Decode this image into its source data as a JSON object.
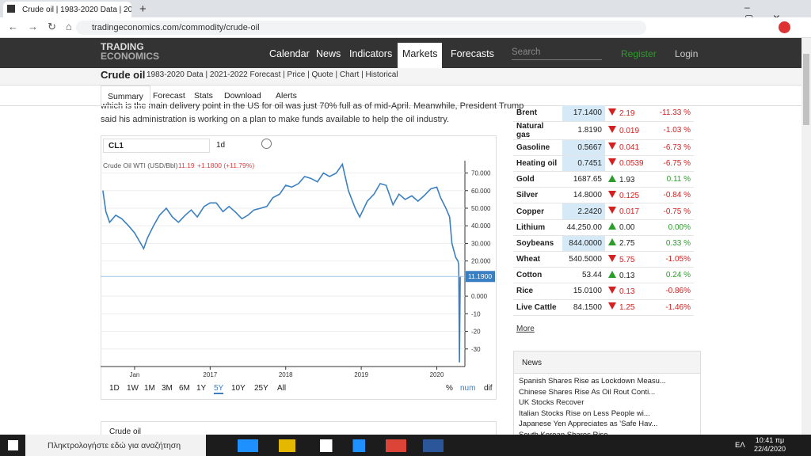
{
  "browser": {
    "tab_title": "Crude oil | 1983-2020 Data | 202",
    "url": "tradingeconomics.com/commodity/crude-oil"
  },
  "nav": {
    "logo_top": "TRADING",
    "logo_bottom": "ECONOMICS",
    "items": [
      "Calendar",
      "News",
      "Indicators",
      "Markets",
      "Forecasts"
    ],
    "search": "Search",
    "register": "Register",
    "login": "Login"
  },
  "subheader": {
    "title": "Crude oil",
    "links": "1983-2020 Data | 2021-2022 Forecast | Price | Quote | Chart | Historical"
  },
  "tabs": [
    "Summary",
    "Forecast",
    "Stats",
    "Download",
    "Alerts"
  ],
  "article": [
    "which is the main delivery point in the US for oil was just 70% full as of mid-April. Meanwhile, President Trump",
    "said his administration is working on a plan to make funds available to help the oil industry."
  ],
  "widget": {
    "symbol": "CL1",
    "interval": "1d",
    "last": "11.19",
    "change": "+1.1800 (+11.79%)",
    "ranges": [
      "1D",
      "1W",
      "1M",
      "3M",
      "6M",
      "1Y",
      "5Y",
      "10Y",
      "25Y",
      "All"
    ],
    "active_range": 6,
    "modes": [
      "%",
      "num",
      "dif"
    ],
    "active_mode": 1
  },
  "chart_data": {
    "type": "line",
    "x": [
      2015.58,
      2015.62,
      2015.67,
      2015.75,
      2015.83,
      2015.92,
      2016.0,
      2016.08,
      2016.12,
      2016.17,
      2016.25,
      2016.33,
      2016.42,
      2016.5,
      2016.58,
      2016.67,
      2016.75,
      2016.83,
      2016.92,
      2017.0,
      2017.08,
      2017.17,
      2017.25,
      2017.33,
      2017.42,
      2017.5,
      2017.58,
      2017.67,
      2017.75,
      2017.83,
      2017.92,
      2018.0,
      2018.08,
      2018.17,
      2018.25,
      2018.33,
      2018.42,
      2018.5,
      2018.58,
      2018.67,
      2018.75,
      2018.83,
      2018.92,
      2018.98,
      2019.08,
      2019.17,
      2019.25,
      2019.33,
      2019.42,
      2019.5,
      2019.58,
      2019.67,
      2019.75,
      2019.83,
      2019.92,
      2020.0,
      2020.05,
      2020.12,
      2020.17,
      2020.2,
      2020.25,
      2020.28,
      2020.29,
      2020.3,
      2020.31
    ],
    "series": [
      {
        "name": "Crude Oil WTI (USD/Bbl)",
        "color": "#3a7fc1",
        "values": [
          60,
          48,
          42,
          46,
          44,
          40,
          36,
          30,
          27,
          33,
          40,
          46,
          50,
          45,
          42,
          46,
          49,
          45,
          51,
          53,
          53,
          48,
          51,
          48,
          44,
          46,
          49,
          50,
          51,
          56,
          58,
          63,
          62,
          64,
          68,
          67,
          65,
          70,
          68,
          70,
          75,
          60,
          50,
          45,
          54,
          58,
          64,
          63,
          52,
          58,
          55,
          57,
          54,
          57,
          61,
          62,
          56,
          50,
          45,
          30,
          22,
          20,
          18,
          -37.63,
          11.19
        ]
      }
    ],
    "last_value": {
      "value": 11.19,
      "label": "11.1900"
    },
    "xlim": [
      2015.55,
      2020.33
    ],
    "xticks": [
      {
        "value": 2016,
        "label": "Jan"
      },
      2017,
      2018,
      2019,
      2020
    ],
    "ylim": [
      -40,
      77
    ],
    "yticks": [
      {
        "value": 70,
        "label": "70.000"
      },
      {
        "value": 60,
        "label": "60.000"
      },
      {
        "value": 50,
        "label": "50.000"
      },
      {
        "value": 40,
        "label": "40.000"
      },
      {
        "value": 30,
        "label": "30.000"
      },
      {
        "value": 20,
        "label": "20.000"
      },
      {
        "value": 0,
        "label": "0.000"
      },
      -10,
      -20,
      -30
    ],
    "grid": true
  },
  "table": {
    "rows": [
      {
        "name": "Brent",
        "price": "17.1400",
        "change": "2.19",
        "pct": "-11.33 %",
        "direction": "down",
        "highlight": true
      },
      {
        "name": "Natural gas",
        "price": "1.8190",
        "change": "0.019",
        "pct": "-1.03 %",
        "direction": "down",
        "highlight": false
      },
      {
        "name": "Gasoline",
        "price": "0.5667",
        "change": "0.041",
        "pct": "-6.73 %",
        "direction": "down",
        "highlight": true
      },
      {
        "name": "Heating oil",
        "price": "0.7451",
        "change": "0.0539",
        "pct": "-6.75 %",
        "direction": "down",
        "highlight": true
      },
      {
        "name": "Gold",
        "price": "1687.65",
        "change": "1.93",
        "pct": "0.11 %",
        "direction": "up",
        "highlight": false
      },
      {
        "name": "Silver",
        "price": "14.8000",
        "change": "0.125",
        "pct": "-0.84 %",
        "direction": "down",
        "highlight": false
      },
      {
        "name": "Copper",
        "price": "2.2420",
        "change": "0.017",
        "pct": "-0.75 %",
        "direction": "down",
        "highlight": true
      },
      {
        "name": "Lithium",
        "price": "44,250.00",
        "change": "0.00",
        "pct": "0.00%",
        "direction": "up",
        "highlight": false
      },
      {
        "name": "Soybeans",
        "price": "844.0000",
        "change": "2.75",
        "pct": "0.33 %",
        "direction": "up",
        "highlight": true
      },
      {
        "name": "Wheat",
        "price": "540.5000",
        "change": "5.75",
        "pct": "-1.05%",
        "direction": "down",
        "highlight": false
      },
      {
        "name": "Cotton",
        "price": "53.44",
        "change": "0.13",
        "pct": "0.24 %",
        "direction": "up",
        "highlight": false
      },
      {
        "name": "Rice",
        "price": "15.0100",
        "change": "0.13",
        "pct": "-0.86%",
        "direction": "down",
        "highlight": false
      },
      {
        "name": "Live Cattle",
        "price": "84.1500",
        "change": "1.25",
        "pct": "-1.46%",
        "direction": "down",
        "highlight": false
      }
    ],
    "more": "More"
  },
  "news": {
    "title": "News",
    "items": [
      "Spanish Shares Rise as Lockdown Measu...",
      "Chinese Shares Rise As Oil Rout Conti...",
      "UK Stocks Recover",
      "Italian Stocks Rise on Less People wi...",
      "Japanese Yen Appreciates as 'Safe Hav...",
      "South Korean Shares Rise..."
    ]
  },
  "bottom_panel": {
    "title": "Crude oil"
  },
  "taskbar": {
    "search": "Πληκτρολογήστε εδώ για αναζήτηση",
    "language": "ΕΛ",
    "time": "10:41 πμ",
    "date": "22/4/2020"
  }
}
